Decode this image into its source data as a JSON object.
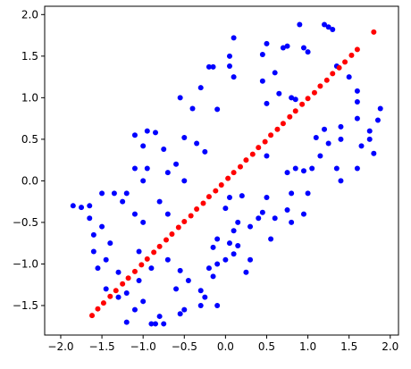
{
  "chart_data": {
    "type": "scatter",
    "xlim": [
      -2.195,
      2.1
    ],
    "ylim": [
      -1.855,
      2.1
    ],
    "xticks": [
      {
        "value": -2,
        "label": "−2.0"
      },
      {
        "value": -1.5,
        "label": "−1.5"
      },
      {
        "value": -1,
        "label": "−1.0"
      },
      {
        "value": -0.5,
        "label": "−0.5"
      },
      {
        "value": 0,
        "label": "0.0"
      },
      {
        "value": 0.5,
        "label": "0.5"
      },
      {
        "value": 1,
        "label": "1.0"
      },
      {
        "value": 1.5,
        "label": "1.5"
      },
      {
        "value": 2,
        "label": "2.0"
      }
    ],
    "yticks": [
      {
        "value": -1.5,
        "label": "−1.5"
      },
      {
        "value": -1,
        "label": "−1.0"
      },
      {
        "value": -0.5,
        "label": "−0.5"
      },
      {
        "value": 0,
        "label": "0.0"
      },
      {
        "value": 0.5,
        "label": "0.5"
      },
      {
        "value": 1,
        "label": "1.0"
      },
      {
        "value": 1.5,
        "label": "1.5"
      },
      {
        "value": 2,
        "label": "2.0"
      }
    ],
    "series": [
      {
        "color": "#0000ff",
        "x": [
          0.9,
          1.2,
          1.25,
          1.3,
          0.7,
          0.75,
          0.95,
          1.0,
          0.1,
          0.5,
          0.05,
          0.45,
          -0.15,
          -0.2,
          0.05,
          0.1,
          -0.3,
          0.45,
          0.6,
          1.35,
          1.5,
          0.65,
          0.8,
          0.85,
          0.5,
          -0.55,
          -0.4,
          -0.1,
          1.6,
          1.6,
          1.6,
          1.88,
          1.85,
          1.75,
          1.75,
          1.4,
          1.2,
          1.1,
          1.15,
          1.25,
          1.4,
          1.65,
          1.8,
          1.6,
          1.4,
          1.35,
          1.05,
          0.95,
          0.85,
          0.5,
          0.75,
          1.0,
          0.8,
          0.75,
          0.95,
          0.6,
          0.45,
          0.4,
          0.2,
          0.05,
          0.0,
          0.15,
          0.3,
          0.1,
          0.05,
          -0.1,
          0.15,
          0.1,
          0.0,
          -0.15,
          -0.1,
          -0.2,
          -0.15,
          -0.3,
          -0.25,
          -0.3,
          -0.5,
          -0.55,
          -0.8,
          -0.85,
          -0.9,
          -0.75,
          -1.1,
          -1.0,
          -1.2,
          -1.3,
          -1.45,
          -1.3,
          -1.45,
          -1.55,
          -1.6,
          -1.6,
          -1.65,
          -1.65,
          -1.5,
          -1.35,
          -1.5,
          -1.75,
          -1.85,
          -1.4,
          -1.0,
          -1.1,
          -1.2,
          -1.25,
          -1.0,
          -1.1,
          -0.95,
          -0.7,
          -0.6,
          -0.8,
          -0.7,
          -1.0,
          -1.1,
          -0.85,
          -0.95,
          -0.75,
          -0.5,
          -0.35,
          -0.25,
          -0.5,
          -1.05,
          -0.9,
          -0.7,
          -0.6,
          -0.45,
          -0.55,
          -1.05,
          -1.2,
          -0.1,
          0.25,
          0.3,
          0.55,
          0.8,
          0.5
        ],
        "values": [
          1.88,
          1.88,
          1.85,
          1.82,
          1.6,
          1.62,
          1.6,
          1.55,
          1.72,
          1.65,
          1.5,
          1.52,
          1.37,
          1.37,
          1.38,
          1.25,
          1.12,
          1.2,
          1.3,
          1.38,
          1.25,
          1.05,
          1.0,
          0.98,
          0.93,
          1.0,
          0.87,
          0.86,
          1.08,
          0.95,
          0.75,
          0.87,
          0.73,
          0.6,
          0.5,
          0.65,
          0.62,
          0.52,
          0.3,
          0.45,
          0.5,
          0.42,
          0.33,
          0.15,
          0.0,
          0.15,
          0.15,
          0.12,
          0.15,
          0.3,
          0.1,
          -0.15,
          -0.15,
          -0.35,
          -0.4,
          -0.45,
          -0.38,
          -0.45,
          -0.18,
          -0.2,
          -0.33,
          -0.5,
          -0.55,
          -0.6,
          -0.75,
          -0.7,
          -0.78,
          -0.88,
          -0.95,
          -0.8,
          -1.0,
          -1.05,
          -1.15,
          -1.32,
          -1.4,
          -1.5,
          -1.55,
          -1.6,
          -1.63,
          -1.72,
          -1.72,
          -1.72,
          -1.55,
          -1.45,
          -1.35,
          -1.4,
          -1.3,
          -1.1,
          -0.95,
          -1.05,
          -0.85,
          -0.65,
          -0.3,
          -0.45,
          -0.15,
          -0.15,
          -0.55,
          -0.32,
          -0.3,
          -0.75,
          -0.5,
          -0.4,
          -0.15,
          -0.25,
          0.0,
          0.15,
          0.15,
          0.1,
          0.2,
          -0.25,
          -0.4,
          0.42,
          0.55,
          0.58,
          0.6,
          0.38,
          0.52,
          0.45,
          0.35,
          0.0,
          -0.85,
          -1.05,
          -0.95,
          -1.3,
          -1.2,
          -1.08,
          -1.2,
          -1.7,
          -1.5,
          -1.1,
          -0.95,
          -0.7,
          -0.5,
          -0.2
        ]
      },
      {
        "color": "#ff0000",
        "x": [
          -1.62,
          -1.55,
          -1.48,
          -1.4,
          -1.33,
          -1.25,
          -1.18,
          -1.1,
          -1.02,
          -0.95,
          -0.87,
          -0.8,
          -0.72,
          -0.65,
          -0.57,
          -0.5,
          -0.42,
          -0.35,
          -0.27,
          -0.2,
          -0.12,
          -0.05,
          0.03,
          0.1,
          0.18,
          0.25,
          0.33,
          0.4,
          0.48,
          0.55,
          0.63,
          0.7,
          0.78,
          0.85,
          0.93,
          1.0,
          1.08,
          1.15,
          1.23,
          1.3,
          1.38,
          1.45,
          1.53,
          1.6,
          1.8
        ],
        "values": [
          -1.62,
          -1.54,
          -1.47,
          -1.39,
          -1.32,
          -1.24,
          -1.17,
          -1.09,
          -1.01,
          -0.94,
          -0.86,
          -0.79,
          -0.71,
          -0.64,
          -0.56,
          -0.49,
          -0.42,
          -0.34,
          -0.27,
          -0.19,
          -0.12,
          -0.05,
          0.03,
          0.1,
          0.17,
          0.25,
          0.32,
          0.4,
          0.47,
          0.55,
          0.62,
          0.69,
          0.77,
          0.84,
          0.92,
          0.99,
          1.06,
          1.14,
          1.21,
          1.29,
          1.36,
          1.43,
          1.51,
          1.58,
          1.79
        ]
      }
    ]
  }
}
